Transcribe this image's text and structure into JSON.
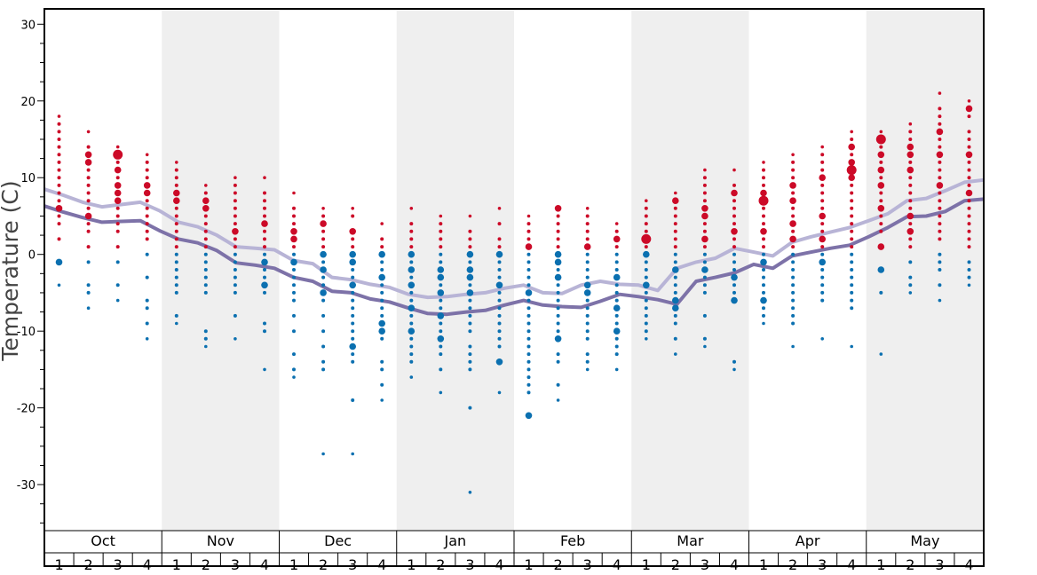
{
  "chart_data": {
    "type": "scatter",
    "ylabel": "Temperature (C)",
    "ylim": [
      -36,
      32
    ],
    "yticks": [
      30,
      20,
      10,
      0,
      -10,
      -20,
      -30
    ],
    "months": [
      "Oct",
      "Nov",
      "Dec",
      "Jan",
      "Feb",
      "Mar",
      "Apr",
      "May"
    ],
    "weeks": [
      "1",
      "2",
      "3",
      "4"
    ],
    "shaded_months": [
      "Nov",
      "Jan",
      "Mar",
      "May"
    ],
    "colors": {
      "warm_dot": "#cc0a28",
      "cold_dot": "#0b70b0",
      "avg_high_line": "#b8b4d6",
      "avg_low_line": "#7d72a8",
      "shade": "#efefef",
      "frame": "#000000"
    },
    "series": [
      {
        "name": "",
        "role": "avg_high",
        "values": [
          8.5,
          7.7,
          6.8,
          6.2,
          6.5,
          6.8,
          5.7,
          4.2,
          3.6,
          2.5,
          1.0,
          0.8,
          0.6,
          -0.8,
          -1.2,
          -3.0,
          -3.3,
          -3.9,
          -4.3,
          -5.2,
          -5.6,
          -5.5,
          -5.2,
          -5.0,
          -4.4,
          -4.0,
          -5.0,
          -5.1,
          -4.0,
          -3.5,
          -3.9,
          -4.0,
          -4.7,
          -1.8,
          -1.0,
          -0.5,
          0.8,
          0.3,
          -0.2,
          1.6,
          2.3,
          2.9,
          3.5,
          4.4,
          5.3,
          7.0,
          7.3,
          8.3,
          9.4,
          9.7
        ]
      },
      {
        "name": "",
        "role": "avg_low",
        "values": [
          6.3,
          5.5,
          4.8,
          4.2,
          4.3,
          4.4,
          3.1,
          2.0,
          1.5,
          0.5,
          -1.1,
          -1.4,
          -1.8,
          -3.0,
          -3.5,
          -4.8,
          -5.0,
          -5.8,
          -6.2,
          -7.0,
          -7.7,
          -7.8,
          -7.5,
          -7.3,
          -6.6,
          -6.0,
          -6.6,
          -6.8,
          -6.9,
          -6.1,
          -5.2,
          -5.5,
          -5.9,
          -6.5,
          -3.5,
          -3.0,
          -2.4,
          -1.3,
          -1.8,
          -0.2,
          0.3,
          0.8,
          1.2,
          2.3,
          3.5,
          4.9,
          5.0,
          5.6,
          7.0,
          7.2
        ]
      }
    ],
    "dot_columns": [
      {
        "month": "Oct",
        "week": "1",
        "values": [
          18,
          17,
          16,
          15,
          14,
          13,
          12,
          11,
          10,
          9,
          8,
          7,
          6,
          5,
          4,
          2,
          -1,
          -4
        ],
        "big": [
          6,
          -1
        ],
        "huge": []
      },
      {
        "month": "Oct",
        "week": "2",
        "values": [
          16,
          14,
          13,
          12,
          11,
          10,
          9,
          8,
          7,
          6,
          5,
          4,
          3,
          1,
          -1,
          -4,
          -5,
          -7
        ],
        "big": [
          13,
          12,
          5
        ],
        "huge": []
      },
      {
        "month": "Oct",
        "week": "3",
        "values": [
          14,
          13,
          12,
          11,
          10,
          9,
          8,
          7,
          6,
          5,
          4,
          3,
          1,
          -1,
          -4,
          -6
        ],
        "big": [
          11,
          9,
          8,
          7
        ],
        "huge": [
          13
        ]
      },
      {
        "month": "Oct",
        "week": "4",
        "values": [
          13,
          12,
          11,
          10,
          9,
          8,
          7,
          6,
          5,
          4,
          3,
          2,
          0,
          -3,
          -6,
          -7,
          -9,
          -11
        ],
        "big": [
          9,
          8
        ],
        "huge": []
      },
      {
        "month": "Nov",
        "week": "1",
        "values": [
          12,
          11,
          10,
          9,
          8,
          7,
          6,
          5,
          4,
          3,
          2,
          1,
          0,
          -1,
          -2,
          -3,
          -4,
          -5,
          -8,
          -9
        ],
        "big": [
          8,
          7
        ],
        "huge": []
      },
      {
        "month": "Nov",
        "week": "2",
        "values": [
          9,
          8,
          7,
          6,
          5,
          4,
          3,
          2,
          1,
          0,
          -1,
          -2,
          -3,
          -4,
          -5,
          -10,
          -11,
          -12
        ],
        "big": [
          7,
          6
        ],
        "huge": []
      },
      {
        "month": "Nov",
        "week": "3",
        "values": [
          10,
          9,
          8,
          7,
          6,
          5,
          4,
          3,
          2,
          1,
          0,
          -1,
          -2,
          -3,
          -4,
          -5,
          -8,
          -11
        ],
        "big": [
          3
        ],
        "huge": []
      },
      {
        "month": "Nov",
        "week": "4",
        "values": [
          10,
          8,
          7,
          6,
          5,
          4,
          3,
          2,
          1,
          0,
          -1,
          -2,
          -3,
          -4,
          -5,
          -9,
          -10,
          -15
        ],
        "big": [
          4,
          -1,
          -4
        ],
        "huge": []
      },
      {
        "month": "Dec",
        "week": "1",
        "values": [
          8,
          6,
          5,
          4,
          3,
          2,
          1,
          0,
          -1,
          -2,
          -3,
          -4,
          -5,
          -6,
          -8,
          -10,
          -13,
          -15,
          -16
        ],
        "big": [
          3,
          2,
          -1
        ],
        "huge": []
      },
      {
        "month": "Dec",
        "week": "2",
        "values": [
          6,
          5,
          4,
          3,
          2,
          1,
          0,
          -1,
          -2,
          -3,
          -4,
          -5,
          -6,
          -8,
          -10,
          -12,
          -14,
          -15,
          -26
        ],
        "big": [
          4,
          0,
          -2,
          -5
        ],
        "huge": []
      },
      {
        "month": "Dec",
        "week": "3",
        "values": [
          6,
          5,
          3,
          2,
          1,
          0,
          -1,
          -2,
          -3,
          -4,
          -5,
          -6,
          -7,
          -8,
          -9,
          -10,
          -11,
          -12,
          -13,
          -14,
          -19,
          -26
        ],
        "big": [
          3,
          0,
          -1,
          -4,
          -12
        ],
        "huge": []
      },
      {
        "month": "Dec",
        "week": "4",
        "values": [
          4,
          2,
          1,
          0,
          -1,
          -2,
          -3,
          -4,
          -5,
          -6,
          -7,
          -8,
          -9,
          -10,
          -11,
          -14,
          -15,
          -17,
          -19
        ],
        "big": [
          0,
          -3,
          -9,
          -10
        ],
        "huge": []
      },
      {
        "month": "Jan",
        "week": "1",
        "values": [
          6,
          4,
          3,
          2,
          1,
          0,
          -1,
          -2,
          -3,
          -4,
          -5,
          -6,
          -7,
          -8,
          -9,
          -10,
          -11,
          -12,
          -13,
          -14,
          -16
        ],
        "big": [
          0,
          -2,
          -4,
          -7,
          -10
        ],
        "huge": []
      },
      {
        "month": "Jan",
        "week": "2",
        "values": [
          5,
          4,
          3,
          2,
          1,
          0,
          -1,
          -2,
          -3,
          -4,
          -5,
          -6,
          -7,
          -8,
          -9,
          -10,
          -11,
          -12,
          -13,
          -15,
          -18
        ],
        "big": [
          -2,
          -3,
          -5,
          -8,
          -11
        ],
        "huge": []
      },
      {
        "month": "Jan",
        "week": "3",
        "values": [
          5,
          3,
          2,
          1,
          0,
          -1,
          -2,
          -3,
          -4,
          -5,
          -6,
          -7,
          -8,
          -9,
          -10,
          -12,
          -13,
          -14,
          -15,
          -20,
          -31
        ],
        "big": [
          0,
          -2,
          -3,
          -5
        ],
        "huge": []
      },
      {
        "month": "Jan",
        "week": "4",
        "values": [
          6,
          4,
          2,
          1,
          0,
          -1,
          -2,
          -3,
          -4,
          -5,
          -6,
          -7,
          -8,
          -9,
          -10,
          -11,
          -12,
          -14,
          -18
        ],
        "big": [
          0,
          -4,
          -14
        ],
        "huge": []
      },
      {
        "month": "Feb",
        "week": "1",
        "values": [
          5,
          4,
          3,
          2,
          1,
          0,
          -1,
          -2,
          -3,
          -4,
          -5,
          -6,
          -7,
          -8,
          -9,
          -10,
          -11,
          -12,
          -13,
          -14,
          -15,
          -16,
          -17,
          -18,
          -21
        ],
        "big": [
          1,
          -5,
          -21
        ],
        "huge": []
      },
      {
        "month": "Feb",
        "week": "2",
        "values": [
          6,
          5,
          4,
          3,
          2,
          1,
          0,
          -1,
          -2,
          -3,
          -4,
          -5,
          -6,
          -7,
          -8,
          -9,
          -10,
          -11,
          -13,
          -14,
          -17,
          -19
        ],
        "big": [
          6,
          0,
          -1,
          -3,
          -11
        ],
        "huge": []
      },
      {
        "month": "Feb",
        "week": "3",
        "values": [
          6,
          5,
          4,
          3,
          2,
          1,
          0,
          -1,
          -2,
          -3,
          -4,
          -5,
          -6,
          -7,
          -8,
          -9,
          -10,
          -11,
          -13,
          -14,
          -15
        ],
        "big": [
          1,
          -4,
          -5
        ],
        "huge": []
      },
      {
        "month": "Feb",
        "week": "4",
        "values": [
          4,
          3,
          2,
          1,
          0,
          -1,
          -2,
          -3,
          -4,
          -5,
          -6,
          -7,
          -8,
          -9,
          -10,
          -11,
          -12,
          -13,
          -15
        ],
        "big": [
          2,
          -3,
          -7,
          -10
        ],
        "huge": []
      },
      {
        "month": "Mar",
        "week": "1",
        "values": [
          7,
          6,
          5,
          4,
          3,
          2,
          1,
          0,
          -1,
          -2,
          -3,
          -4,
          -5,
          -6,
          -7,
          -8,
          -9,
          -10,
          -11
        ],
        "big": [
          0,
          -4
        ],
        "huge": [
          2
        ]
      },
      {
        "month": "Mar",
        "week": "2",
        "values": [
          8,
          7,
          6,
          5,
          4,
          3,
          2,
          1,
          0,
          -1,
          -2,
          -3,
          -4,
          -5,
          -6,
          -7,
          -8,
          -9,
          -11,
          -13
        ],
        "big": [
          7,
          -2,
          -6,
          -7
        ],
        "huge": []
      },
      {
        "month": "Mar",
        "week": "3",
        "values": [
          11,
          10,
          9,
          8,
          7,
          6,
          5,
          4,
          3,
          2,
          1,
          0,
          -1,
          -2,
          -3,
          -4,
          -5,
          -8,
          -11,
          -12
        ],
        "big": [
          6,
          5,
          2,
          -2
        ],
        "huge": []
      },
      {
        "month": "Mar",
        "week": "4",
        "values": [
          11,
          9,
          8,
          7,
          6,
          5,
          4,
          3,
          2,
          1,
          0,
          -1,
          -2,
          -3,
          -4,
          -5,
          -6,
          -14,
          -15
        ],
        "big": [
          8,
          3,
          -3,
          -6
        ],
        "huge": []
      },
      {
        "month": "Apr",
        "week": "1",
        "values": [
          12,
          11,
          10,
          9,
          8,
          7,
          6,
          5,
          4,
          3,
          2,
          1,
          0,
          -1,
          -2,
          -3,
          -4,
          -5,
          -6,
          -7,
          -8,
          -9
        ],
        "big": [
          8,
          3,
          -1,
          -6
        ],
        "huge": [
          7
        ]
      },
      {
        "month": "Apr",
        "week": "2",
        "values": [
          13,
          12,
          11,
          10,
          9,
          8,
          7,
          6,
          5,
          4,
          3,
          2,
          1,
          0,
          -1,
          -2,
          -3,
          -4,
          -5,
          -6,
          -7,
          -8,
          -9,
          -12
        ],
        "big": [
          9,
          7,
          4,
          2
        ],
        "huge": []
      },
      {
        "month": "Apr",
        "week": "3",
        "values": [
          14,
          13,
          12,
          11,
          10,
          9,
          8,
          7,
          6,
          5,
          4,
          3,
          2,
          1,
          0,
          -1,
          -2,
          -3,
          -4,
          -5,
          -6,
          -11
        ],
        "big": [
          10,
          5,
          2,
          -1
        ],
        "huge": []
      },
      {
        "month": "Apr",
        "week": "4",
        "values": [
          16,
          15,
          14,
          13,
          12,
          11,
          10,
          9,
          8,
          7,
          6,
          5,
          4,
          3,
          2,
          1,
          0,
          -1,
          -2,
          -3,
          -4,
          -5,
          -6,
          -7,
          -12
        ],
        "big": [
          14,
          12,
          10
        ],
        "huge": [
          11
        ]
      },
      {
        "month": "May",
        "week": "1",
        "values": [
          16,
          15,
          14,
          13,
          12,
          11,
          10,
          9,
          8,
          7,
          6,
          5,
          4,
          3,
          1,
          -2,
          -5,
          -13
        ],
        "big": [
          13,
          11,
          9,
          6,
          1,
          -2
        ],
        "huge": [
          15
        ]
      },
      {
        "month": "May",
        "week": "2",
        "values": [
          17,
          16,
          15,
          14,
          13,
          12,
          11,
          10,
          9,
          8,
          7,
          6,
          5,
          4,
          3,
          2,
          1,
          -1,
          -3,
          -4,
          -5
        ],
        "big": [
          14,
          13,
          11,
          5,
          3
        ],
        "huge": []
      },
      {
        "month": "May",
        "week": "3",
        "values": [
          21,
          19,
          18,
          17,
          16,
          15,
          14,
          13,
          12,
          11,
          10,
          9,
          8,
          7,
          6,
          5,
          4,
          3,
          2,
          0,
          -1,
          -2,
          -4,
          -6
        ],
        "big": [
          16,
          13,
          9
        ],
        "huge": []
      },
      {
        "month": "May",
        "week": "4",
        "values": [
          20,
          19,
          18,
          16,
          15,
          14,
          13,
          12,
          11,
          10,
          9,
          8,
          7,
          6,
          5,
          4,
          3,
          2,
          1,
          -1,
          -2,
          -3,
          -4
        ],
        "big": [
          19,
          13,
          8
        ],
        "huge": []
      }
    ]
  }
}
